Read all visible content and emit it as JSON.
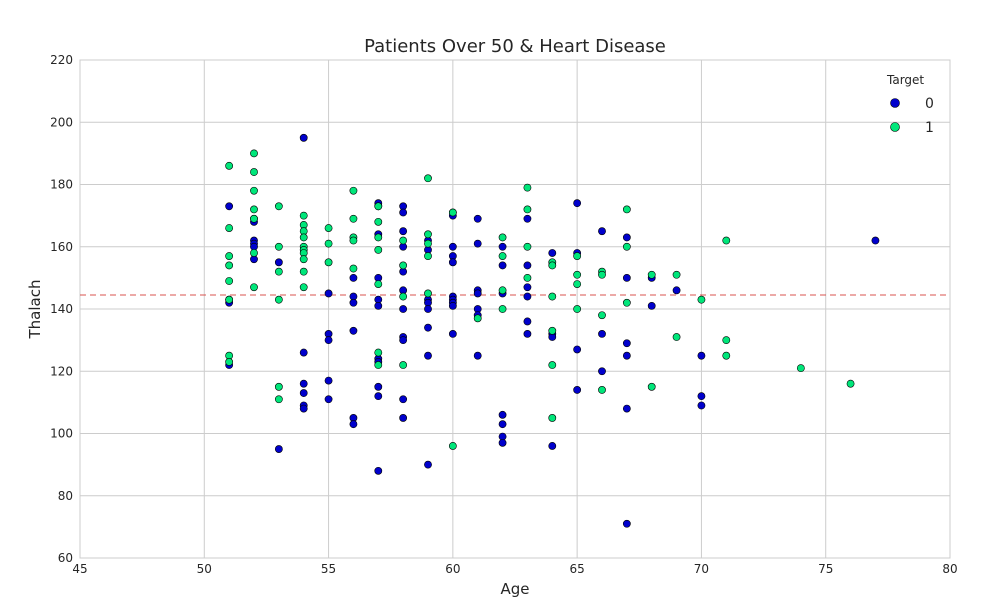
{
  "chart_data": {
    "type": "scatter",
    "title": "Patients Over 50 & Heart Disease",
    "xlabel": "Age",
    "ylabel": "Thalach",
    "xlim": [
      45,
      80
    ],
    "ylim": [
      60,
      220
    ],
    "xticks": [
      "45",
      "50",
      "55",
      "60",
      "65",
      "70",
      "75",
      "80"
    ],
    "yticks": [
      "60",
      "80",
      "100",
      "120",
      "140",
      "160",
      "180",
      "200",
      "220"
    ],
    "grid": true,
    "legend": {
      "title": "Target",
      "placement": "top-right"
    },
    "hline": {
      "y": 144.5,
      "style": "dashed",
      "color": "#d9534f"
    },
    "series": [
      {
        "name": "0",
        "color": "#0000cc",
        "points": [
          [
            51,
            173
          ],
          [
            51,
            143
          ],
          [
            51,
            142
          ],
          [
            51,
            122
          ],
          [
            52,
            169
          ],
          [
            52,
            168
          ],
          [
            52,
            162
          ],
          [
            52,
            161
          ],
          [
            52,
            160
          ],
          [
            52,
            156
          ],
          [
            53,
            155
          ],
          [
            53,
            95
          ],
          [
            54,
            195
          ],
          [
            54,
            126
          ],
          [
            54,
            116
          ],
          [
            54,
            113
          ],
          [
            54,
            109
          ],
          [
            54,
            108
          ],
          [
            55,
            145
          ],
          [
            55,
            132
          ],
          [
            55,
            130
          ],
          [
            55,
            117
          ],
          [
            55,
            111
          ],
          [
            56,
            150
          ],
          [
            56,
            144
          ],
          [
            56,
            142
          ],
          [
            56,
            133
          ],
          [
            56,
            105
          ],
          [
            56,
            103
          ],
          [
            57,
            174
          ],
          [
            57,
            173
          ],
          [
            57,
            164
          ],
          [
            57,
            150
          ],
          [
            57,
            143
          ],
          [
            57,
            141
          ],
          [
            57,
            124
          ],
          [
            57,
            123
          ],
          [
            57,
            115
          ],
          [
            57,
            112
          ],
          [
            57,
            88
          ],
          [
            58,
            173
          ],
          [
            58,
            171
          ],
          [
            58,
            165
          ],
          [
            58,
            160
          ],
          [
            58,
            152
          ],
          [
            58,
            146
          ],
          [
            58,
            140
          ],
          [
            58,
            131
          ],
          [
            58,
            130
          ],
          [
            58,
            111
          ],
          [
            58,
            105
          ],
          [
            59,
            162
          ],
          [
            59,
            159
          ],
          [
            59,
            143
          ],
          [
            59,
            142
          ],
          [
            59,
            140
          ],
          [
            59,
            134
          ],
          [
            59,
            125
          ],
          [
            59,
            90
          ],
          [
            60,
            171
          ],
          [
            60,
            170
          ],
          [
            60,
            160
          ],
          [
            60,
            157
          ],
          [
            60,
            155
          ],
          [
            60,
            144
          ],
          [
            60,
            143
          ],
          [
            60,
            142
          ],
          [
            60,
            141
          ],
          [
            60,
            132
          ],
          [
            61,
            169
          ],
          [
            61,
            161
          ],
          [
            61,
            146
          ],
          [
            61,
            145
          ],
          [
            61,
            140
          ],
          [
            61,
            138
          ],
          [
            61,
            125
          ],
          [
            62,
            160
          ],
          [
            62,
            154
          ],
          [
            62,
            145
          ],
          [
            62,
            106
          ],
          [
            62,
            103
          ],
          [
            62,
            99
          ],
          [
            62,
            97
          ],
          [
            63,
            169
          ],
          [
            63,
            154
          ],
          [
            63,
            147
          ],
          [
            63,
            144
          ],
          [
            63,
            136
          ],
          [
            63,
            132
          ],
          [
            64,
            158
          ],
          [
            64,
            132
          ],
          [
            64,
            131
          ],
          [
            64,
            96
          ],
          [
            65,
            174
          ],
          [
            65,
            158
          ],
          [
            65,
            127
          ],
          [
            65,
            114
          ],
          [
            66,
            165
          ],
          [
            66,
            132
          ],
          [
            66,
            120
          ],
          [
            67,
            163
          ],
          [
            67,
            150
          ],
          [
            67,
            129
          ],
          [
            67,
            125
          ],
          [
            67,
            108
          ],
          [
            67,
            71
          ],
          [
            68,
            150
          ],
          [
            68,
            141
          ],
          [
            69,
            146
          ],
          [
            70,
            125
          ],
          [
            70,
            112
          ],
          [
            70,
            109
          ],
          [
            77,
            162
          ]
        ]
      },
      {
        "name": "1",
        "color": "#00e67a",
        "points": [
          [
            51,
            186
          ],
          [
            51,
            166
          ],
          [
            51,
            157
          ],
          [
            51,
            154
          ],
          [
            51,
            149
          ],
          [
            51,
            143
          ],
          [
            51,
            125
          ],
          [
            51,
            123
          ],
          [
            52,
            190
          ],
          [
            52,
            184
          ],
          [
            52,
            178
          ],
          [
            52,
            172
          ],
          [
            52,
            169
          ],
          [
            52,
            158
          ],
          [
            52,
            147
          ],
          [
            53,
            173
          ],
          [
            53,
            160
          ],
          [
            53,
            152
          ],
          [
            53,
            143
          ],
          [
            53,
            115
          ],
          [
            53,
            111
          ],
          [
            54,
            170
          ],
          [
            54,
            167
          ],
          [
            54,
            165
          ],
          [
            54,
            163
          ],
          [
            54,
            160
          ],
          [
            54,
            159
          ],
          [
            54,
            158
          ],
          [
            54,
            156
          ],
          [
            54,
            152
          ],
          [
            54,
            147
          ],
          [
            55,
            166
          ],
          [
            55,
            161
          ],
          [
            55,
            155
          ],
          [
            56,
            178
          ],
          [
            56,
            169
          ],
          [
            56,
            163
          ],
          [
            56,
            162
          ],
          [
            56,
            153
          ],
          [
            57,
            173
          ],
          [
            57,
            168
          ],
          [
            57,
            163
          ],
          [
            57,
            159
          ],
          [
            57,
            148
          ],
          [
            57,
            126
          ],
          [
            57,
            122
          ],
          [
            58,
            162
          ],
          [
            58,
            154
          ],
          [
            58,
            144
          ],
          [
            58,
            122
          ],
          [
            59,
            182
          ],
          [
            59,
            164
          ],
          [
            59,
            161
          ],
          [
            59,
            157
          ],
          [
            59,
            145
          ],
          [
            60,
            171
          ],
          [
            60,
            96
          ],
          [
            61,
            137
          ],
          [
            62,
            163
          ],
          [
            62,
            157
          ],
          [
            62,
            146
          ],
          [
            62,
            140
          ],
          [
            63,
            179
          ],
          [
            63,
            172
          ],
          [
            63,
            160
          ],
          [
            63,
            150
          ],
          [
            64,
            155
          ],
          [
            64,
            154
          ],
          [
            64,
            144
          ],
          [
            64,
            133
          ],
          [
            64,
            122
          ],
          [
            64,
            105
          ],
          [
            65,
            157
          ],
          [
            65,
            151
          ],
          [
            65,
            148
          ],
          [
            65,
            140
          ],
          [
            66,
            152
          ],
          [
            66,
            151
          ],
          [
            66,
            138
          ],
          [
            66,
            114
          ],
          [
            67,
            172
          ],
          [
            67,
            160
          ],
          [
            67,
            142
          ],
          [
            68,
            151
          ],
          [
            68,
            115
          ],
          [
            69,
            151
          ],
          [
            69,
            131
          ],
          [
            70,
            143
          ],
          [
            71,
            162
          ],
          [
            71,
            130
          ],
          [
            71,
            125
          ],
          [
            74,
            121
          ],
          [
            76,
            116
          ]
        ]
      }
    ]
  }
}
